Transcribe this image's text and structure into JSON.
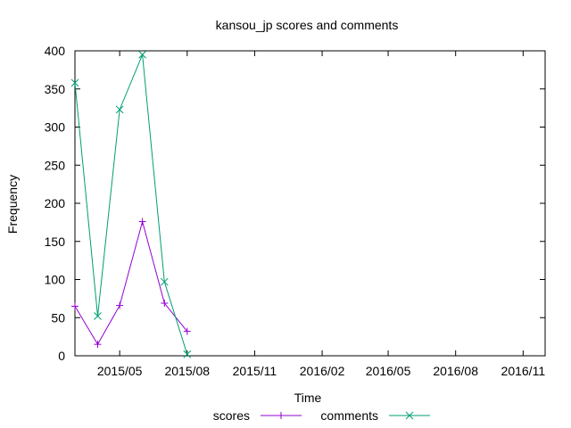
{
  "chart_data": {
    "type": "line",
    "title": "kansou_jp scores and comments",
    "xlabel": "Time",
    "ylabel": "Frequency",
    "x_domain": [
      "2015-03-01",
      "2016-12-01"
    ],
    "ylim": [
      0,
      400
    ],
    "y_ticks": [
      0,
      50,
      100,
      150,
      200,
      250,
      300,
      350,
      400
    ],
    "x_ticks": [
      {
        "date": "2015-05-01",
        "label": "2015/05"
      },
      {
        "date": "2015-08-01",
        "label": "2015/08"
      },
      {
        "date": "2015-11-01",
        "label": "2015/11"
      },
      {
        "date": "2016-02-01",
        "label": "2016/02"
      },
      {
        "date": "2016-05-01",
        "label": "2016/05"
      },
      {
        "date": "2016-08-01",
        "label": "2016/08"
      },
      {
        "date": "2016-11-01",
        "label": "2016/11"
      }
    ],
    "grid": false,
    "legend_position": "bottom",
    "series": [
      {
        "name": "scores",
        "color": "#9400d3",
        "marker": "plus",
        "points": [
          {
            "x": "2015-03-01",
            "y": 65
          },
          {
            "x": "2015-04-01",
            "y": 15
          },
          {
            "x": "2015-05-01",
            "y": 66
          },
          {
            "x": "2015-06-01",
            "y": 176
          },
          {
            "x": "2015-07-01",
            "y": 69
          },
          {
            "x": "2015-08-01",
            "y": 32
          }
        ]
      },
      {
        "name": "comments",
        "color": "#009e73",
        "marker": "cross",
        "points": [
          {
            "x": "2015-03-01",
            "y": 358
          },
          {
            "x": "2015-04-01",
            "y": 52
          },
          {
            "x": "2015-05-01",
            "y": 323
          },
          {
            "x": "2015-06-01",
            "y": 395
          },
          {
            "x": "2015-07-01",
            "y": 97
          },
          {
            "x": "2015-08-01",
            "y": 2
          }
        ]
      }
    ]
  }
}
